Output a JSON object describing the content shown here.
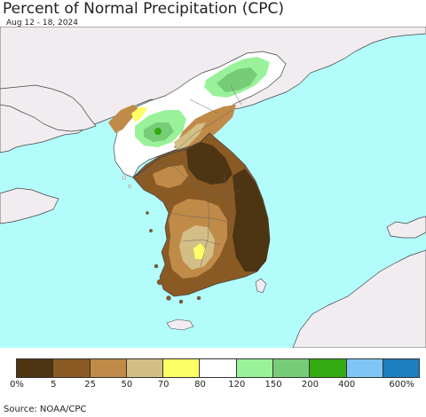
{
  "title": "Percent of Normal Precipitation (CPC)",
  "date_range": "Aug 12 - 18, 2024",
  "source": "Source: NOAA/CPC",
  "legend": {
    "colors": [
      "#4d3413",
      "#8a5a24",
      "#c08a48",
      "#d3bf86",
      "#ffff66",
      "#ffffff",
      "#99f299",
      "#77cc77",
      "#33aa11",
      "#7fc6f6",
      "#1e7fc0"
    ],
    "labels": [
      "0%",
      "5",
      "25",
      "50",
      "70",
      "80",
      "120",
      "150",
      "200",
      "400",
      "600%"
    ]
  },
  "map_colors": {
    "ocean": "#b3fcfc",
    "land_outside": "#f0ecef",
    "border": "#444444"
  }
}
